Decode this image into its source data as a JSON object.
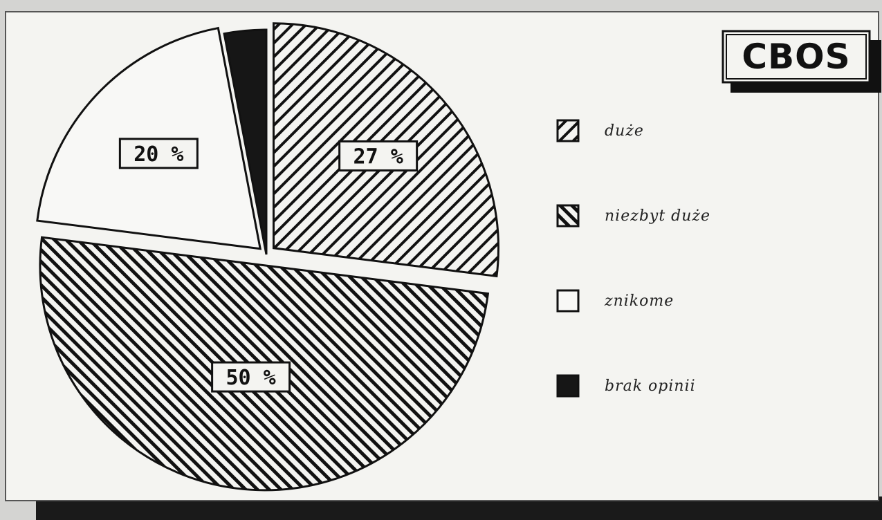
{
  "brand": "CBOS",
  "chart_data": {
    "type": "pie",
    "slices": [
      {
        "label": "duże",
        "value": 27,
        "value_label": "27 %",
        "pattern": "hatch-backslash"
      },
      {
        "label": "niezbyt duże",
        "value": 50,
        "value_label": "50 %",
        "pattern": "hatch-slash"
      },
      {
        "label": "znikome",
        "value": 20,
        "value_label": "20 %",
        "pattern": "white"
      },
      {
        "label": "brak opinii",
        "value": 3,
        "value_label": "",
        "pattern": "solid-black"
      }
    ],
    "legend_position": "right",
    "exploded": true
  },
  "colors": {
    "ink": "#111111",
    "paper": "#f4f4f1",
    "backdrop": "#d4d4d2"
  }
}
